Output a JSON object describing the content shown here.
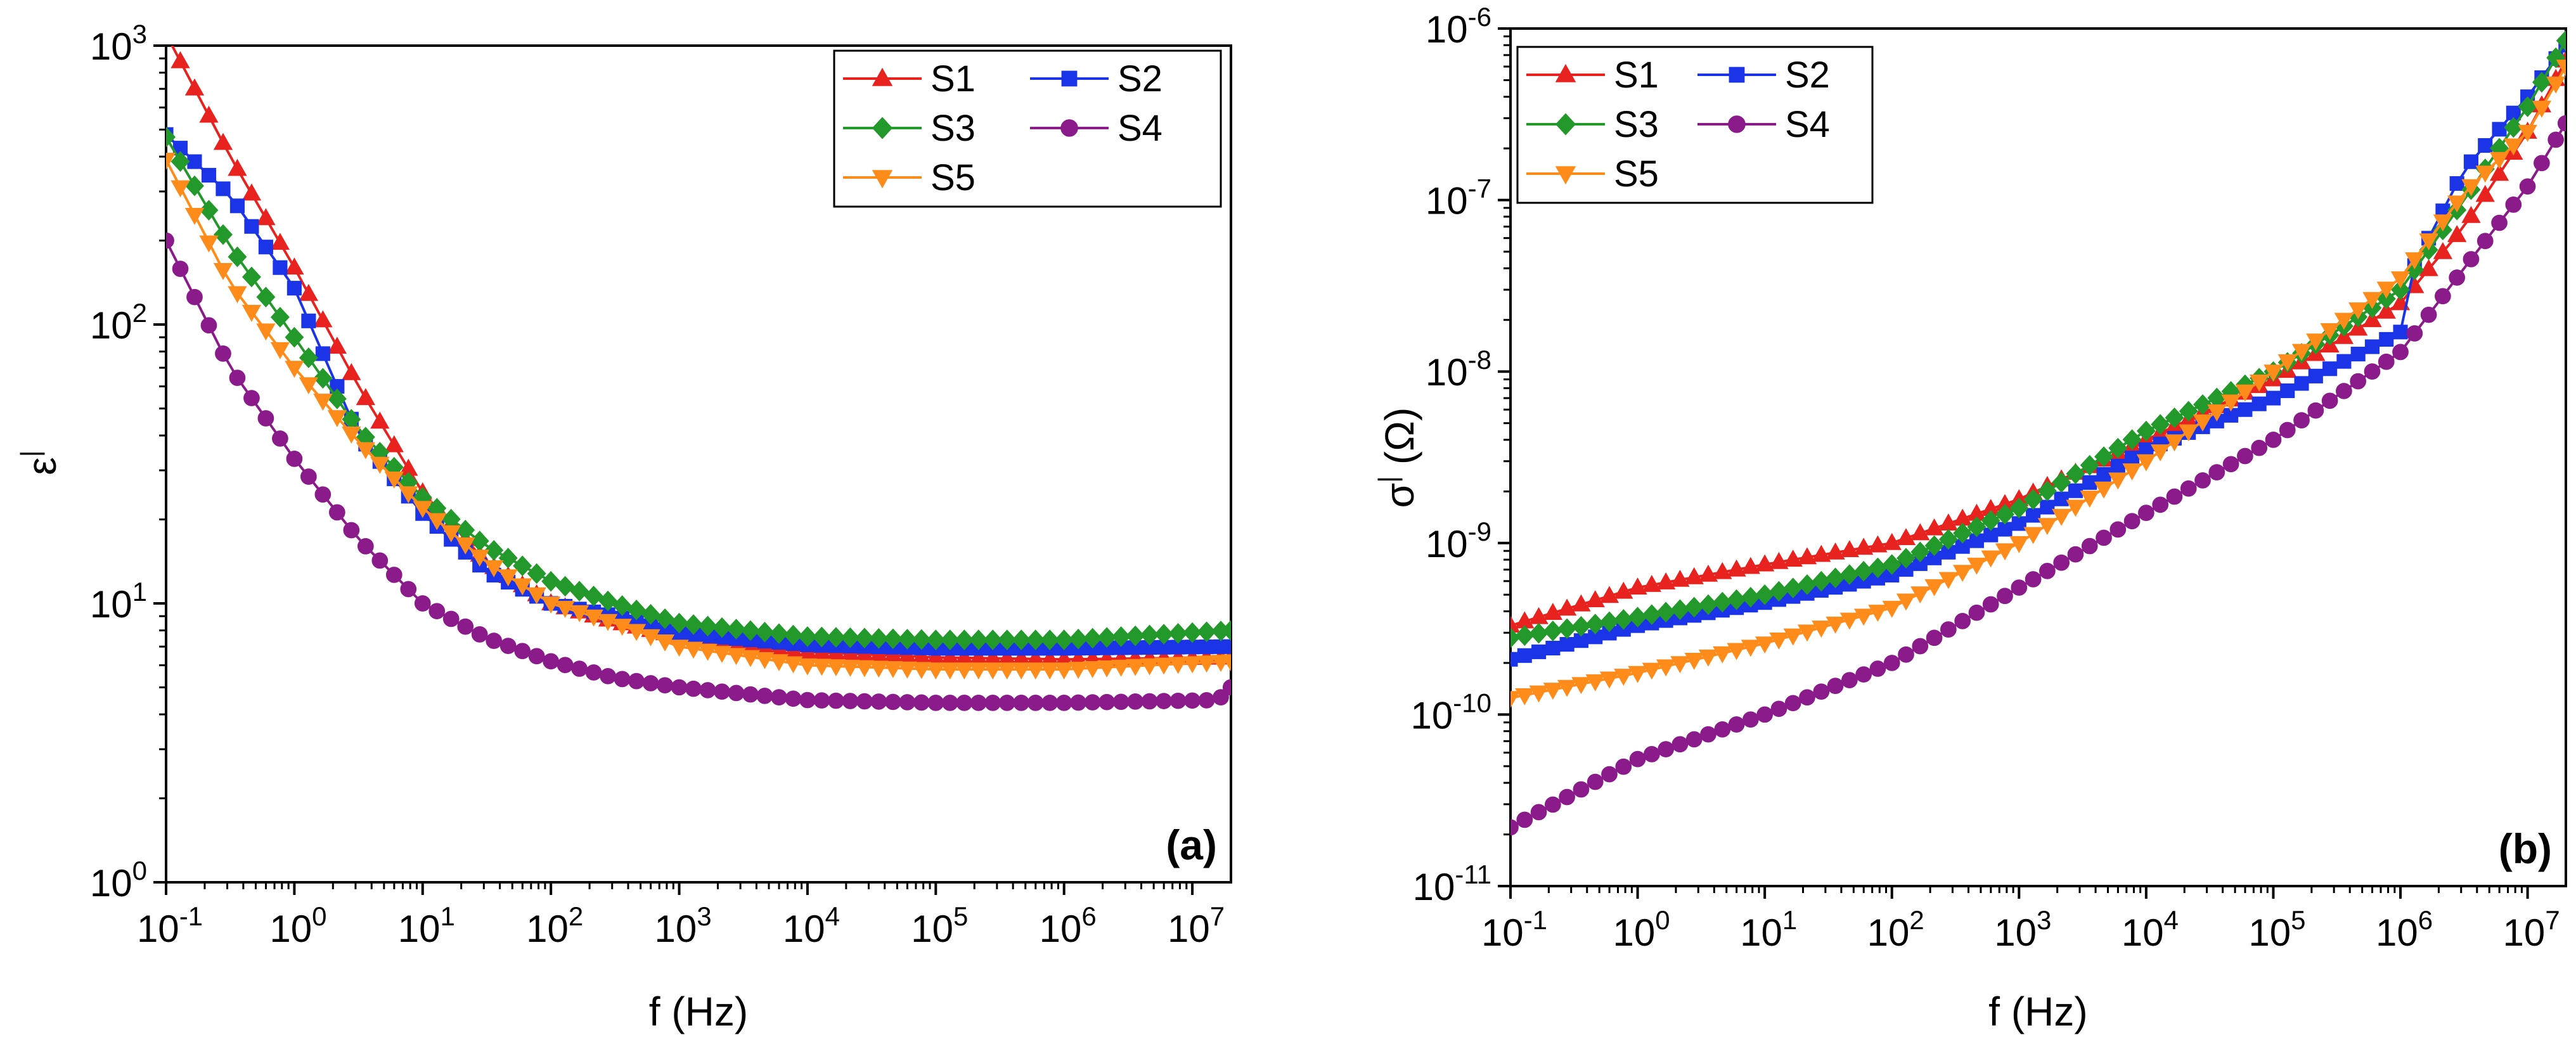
{
  "chart_data": [
    {
      "type": "line",
      "panel_label": "(a)",
      "xlabel": "f (Hz)",
      "ylabel_base": "ε",
      "ylabel_sup": "|",
      "ylabel_unit": "",
      "xscale": "log",
      "yscale": "log",
      "xlim": [
        0.1,
        20000000
      ],
      "ylim": [
        1,
        1000
      ],
      "x_ticks": [
        {
          "base": "10",
          "exp": "-1",
          "value": 0.1
        },
        {
          "base": "10",
          "exp": "0",
          "value": 1
        },
        {
          "base": "10",
          "exp": "1",
          "value": 10
        },
        {
          "base": "10",
          "exp": "2",
          "value": 100
        },
        {
          "base": "10",
          "exp": "3",
          "value": 1000
        },
        {
          "base": "10",
          "exp": "4",
          "value": 10000
        },
        {
          "base": "10",
          "exp": "5",
          "value": 100000
        },
        {
          "base": "10",
          "exp": "6",
          "value": 1000000
        },
        {
          "base": "10",
          "exp": "7",
          "value": 10000000
        }
      ],
      "y_ticks": [
        {
          "base": "10",
          "exp": "0",
          "value": 1
        },
        {
          "base": "10",
          "exp": "1",
          "value": 10
        },
        {
          "base": "10",
          "exp": "2",
          "value": 100
        },
        {
          "base": "10",
          "exp": "3",
          "value": 1000
        }
      ],
      "legend_position": "top-right",
      "legend_layout": [
        [
          "S1",
          "S2"
        ],
        [
          "S3",
          "S4"
        ],
        [
          "S5"
        ]
      ],
      "series": [
        {
          "name": "S1",
          "color": "#e8231f",
          "marker": "triangle-up",
          "anchors": [
            [
              -1,
              1100
            ],
            [
              -0.5,
              400
            ],
            [
              0,
              160
            ],
            [
              0.5,
              60
            ],
            [
              1,
              25
            ],
            [
              1.5,
              14
            ],
            [
              2,
              10
            ],
            [
              2.5,
              8.6
            ],
            [
              3,
              7.6
            ],
            [
              4,
              6.7
            ],
            [
              5,
              6.4
            ],
            [
              6,
              6.3
            ],
            [
              7.3,
              6.4
            ]
          ]
        },
        {
          "name": "S2",
          "color": "#1b34e8",
          "marker": "square",
          "anchors": [
            [
              -1,
              480
            ],
            [
              -0.5,
              290
            ],
            [
              0,
              135
            ],
            [
              0.5,
              40
            ],
            [
              1,
              21
            ],
            [
              1.5,
              13
            ],
            [
              2,
              10
            ],
            [
              2.5,
              9
            ],
            [
              3,
              7.8
            ],
            [
              4,
              7.1
            ],
            [
              5,
              6.9
            ],
            [
              6,
              6.9
            ],
            [
              7.3,
              7.0
            ]
          ]
        },
        {
          "name": "S3",
          "color": "#24992b",
          "marker": "diamond",
          "anchors": [
            [
              -1,
              470
            ],
            [
              -0.5,
              190
            ],
            [
              0,
              90
            ],
            [
              0.5,
              42
            ],
            [
              1,
              24
            ],
            [
              1.5,
              16
            ],
            [
              2,
              12
            ],
            [
              2.5,
              10
            ],
            [
              3,
              8.5
            ],
            [
              4,
              7.6
            ],
            [
              5,
              7.4
            ],
            [
              6,
              7.4
            ],
            [
              7.3,
              8.0
            ]
          ]
        },
        {
          "name": "S4",
          "color": "#8b1a8b",
          "marker": "circle",
          "anchors": [
            [
              -1,
              200
            ],
            [
              -0.5,
              70
            ],
            [
              0,
              33
            ],
            [
              0.5,
              17
            ],
            [
              1,
              10
            ],
            [
              1.5,
              7.5
            ],
            [
              2,
              6.2
            ],
            [
              2.5,
              5.4
            ],
            [
              3,
              5.0
            ],
            [
              4,
              4.5
            ],
            [
              5,
              4.4
            ],
            [
              6,
              4.4
            ],
            [
              7.2,
              4.5
            ],
            [
              7.3,
              5.0
            ]
          ]
        },
        {
          "name": "S5",
          "color": "#ff8c1a",
          "marker": "triangle-down",
          "anchors": [
            [
              -1,
              390
            ],
            [
              -0.5,
              140
            ],
            [
              0,
              70
            ],
            [
              0.5,
              38
            ],
            [
              1,
              22
            ],
            [
              1.5,
              14
            ],
            [
              2,
              10
            ],
            [
              2.5,
              8.5
            ],
            [
              3,
              7.0
            ],
            [
              4,
              6.0
            ],
            [
              5,
              5.8
            ],
            [
              6,
              5.8
            ],
            [
              7.3,
              6.2
            ]
          ]
        }
      ]
    },
    {
      "type": "line",
      "panel_label": "(b)",
      "xlabel": "f (Hz)",
      "ylabel_base": "σ",
      "ylabel_sup": "|",
      "ylabel_unit": " (Ω)",
      "xscale": "log",
      "yscale": "log",
      "xlim": [
        0.1,
        20000000
      ],
      "ylim": [
        1e-11,
        1e-06
      ],
      "x_ticks": [
        {
          "base": "10",
          "exp": "-1",
          "value": 0.1
        },
        {
          "base": "10",
          "exp": "0",
          "value": 1
        },
        {
          "base": "10",
          "exp": "1",
          "value": 10
        },
        {
          "base": "10",
          "exp": "2",
          "value": 100
        },
        {
          "base": "10",
          "exp": "3",
          "value": 1000
        },
        {
          "base": "10",
          "exp": "4",
          "value": 10000
        },
        {
          "base": "10",
          "exp": "5",
          "value": 100000
        },
        {
          "base": "10",
          "exp": "6",
          "value": 1000000
        },
        {
          "base": "10",
          "exp": "7",
          "value": 10000000
        }
      ],
      "y_ticks": [
        {
          "base": "10",
          "exp": "-11",
          "value": 1e-11
        },
        {
          "base": "10",
          "exp": "-10",
          "value": 1e-10
        },
        {
          "base": "10",
          "exp": "-9",
          "value": 1e-09
        },
        {
          "base": "10",
          "exp": "-8",
          "value": 1e-08
        },
        {
          "base": "10",
          "exp": "-7",
          "value": 1e-07
        },
        {
          "base": "10",
          "exp": "-6",
          "value": 1e-06
        }
      ],
      "legend_position": "top-left",
      "legend_layout": [
        [
          "S1",
          "S2"
        ],
        [
          "S3",
          "S4"
        ],
        [
          "S5"
        ]
      ],
      "series": [
        {
          "name": "S1",
          "color": "#e8231f",
          "marker": "triangle-up",
          "anchors": [
            [
              -1,
              3.3e-10
            ],
            [
              0,
              5.5e-10
            ],
            [
              1,
              7.5e-10
            ],
            [
              2,
              1e-09
            ],
            [
              3,
              1.8e-09
            ],
            [
              4,
              4e-09
            ],
            [
              5,
              9e-09
            ],
            [
              6,
              2.5e-08
            ],
            [
              6.5,
              7e-08
            ],
            [
              7,
              2.5e-07
            ],
            [
              7.3,
              6.5e-07
            ]
          ]
        },
        {
          "name": "S2",
          "color": "#1b34e8",
          "marker": "square",
          "anchors": [
            [
              -1,
              2.1e-10
            ],
            [
              0,
              3.3e-10
            ],
            [
              1,
              4.5e-10
            ],
            [
              2,
              6.5e-10
            ],
            [
              3,
              1.3e-09
            ],
            [
              4,
              3.5e-09
            ],
            [
              5,
              7e-09
            ],
            [
              6,
              1.7e-08
            ],
            [
              6.1,
              4e-08
            ],
            [
              6.5,
              1.5e-07
            ],
            [
              7,
              4e-07
            ],
            [
              7.3,
              8e-07
            ]
          ]
        },
        {
          "name": "S3",
          "color": "#24992b",
          "marker": "diamond",
          "anchors": [
            [
              -1,
              2.8e-10
            ],
            [
              0,
              3.7e-10
            ],
            [
              1,
              5e-10
            ],
            [
              2,
              7.5e-10
            ],
            [
              3,
              1.6e-09
            ],
            [
              4,
              4.5e-09
            ],
            [
              5,
              1e-08
            ],
            [
              6,
              3e-08
            ],
            [
              6.5,
              1e-07
            ],
            [
              7,
              3.5e-07
            ],
            [
              7.3,
              8.5e-07
            ]
          ]
        },
        {
          "name": "S4",
          "color": "#8b1a8b",
          "marker": "circle",
          "anchors": [
            [
              -1,
              2.2e-11
            ],
            [
              0,
              5.5e-11
            ],
            [
              1,
              1e-10
            ],
            [
              2,
              2e-10
            ],
            [
              3,
              5.5e-10
            ],
            [
              4,
              1.5e-09
            ],
            [
              5,
              4e-09
            ],
            [
              6,
              1.3e-08
            ],
            [
              6.5,
              4e-08
            ],
            [
              7,
              1.2e-07
            ],
            [
              7.3,
              2.8e-07
            ]
          ]
        },
        {
          "name": "S5",
          "color": "#ff8c1a",
          "marker": "triangle-down",
          "anchors": [
            [
              -1,
              1.25e-10
            ],
            [
              0,
              1.75e-10
            ],
            [
              1,
              2.6e-10
            ],
            [
              2,
              4.2e-10
            ],
            [
              3,
              1e-09
            ],
            [
              4,
              3e-09
            ],
            [
              5,
              1e-08
            ],
            [
              6,
              3.5e-08
            ],
            [
              6.5,
              1.1e-07
            ],
            [
              7,
              2.5e-07
            ],
            [
              7.3,
              6e-07
            ]
          ]
        }
      ]
    }
  ]
}
